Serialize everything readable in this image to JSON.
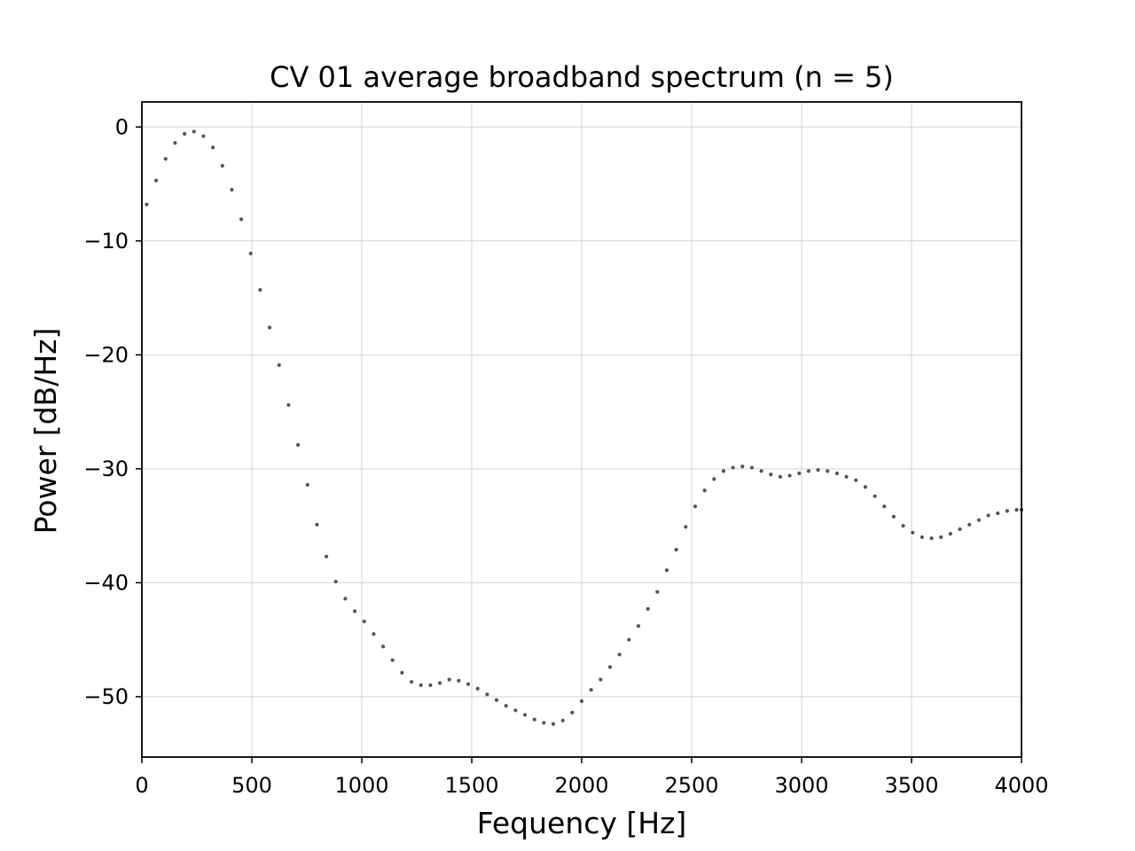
{
  "chart_data": {
    "type": "scatter",
    "title": "CV 01 average broadband spectrum (n = 5)",
    "xlabel": "Fequency [Hz]",
    "ylabel": "Power [dB/Hz]",
    "xlim": [
      0,
      4000
    ],
    "ylim": [
      -55.3,
      2.2
    ],
    "xticks": [
      0,
      500,
      1000,
      1500,
      2000,
      2500,
      3000,
      3500,
      4000
    ],
    "xtick_labels": [
      "0",
      "500",
      "1000",
      "1500",
      "2000",
      "2500",
      "3000",
      "3500",
      "4000"
    ],
    "yticks": [
      0,
      -10,
      -20,
      -30,
      -40,
      -50
    ],
    "ytick_labels": [
      "0",
      "−10",
      "−20",
      "−30",
      "−40",
      "−50"
    ],
    "grid": true,
    "marker_color": "#555555",
    "series": [
      {
        "x": [
          22,
          65,
          108,
          151,
          194,
          237,
          280,
          323,
          366,
          409,
          452,
          495,
          538,
          581,
          624,
          667,
          710,
          753,
          796,
          839,
          882,
          925,
          968,
          1011,
          1054,
          1097,
          1140,
          1183,
          1226,
          1269,
          1312,
          1355,
          1398,
          1441,
          1484,
          1527,
          1570,
          1613,
          1656,
          1699,
          1742,
          1785,
          1828,
          1871,
          1914,
          1957,
          2000,
          2043,
          2086,
          2129,
          2172,
          2215,
          2258,
          2301,
          2344,
          2387,
          2430,
          2473,
          2516,
          2559,
          2602,
          2645,
          2688,
          2731,
          2774,
          2817,
          2860,
          2903,
          2946,
          2989,
          3032,
          3075,
          3118,
          3161,
          3204,
          3247,
          3290,
          3333,
          3376,
          3419,
          3462,
          3505,
          3548,
          3591,
          3634,
          3677,
          3720,
          3763,
          3806,
          3849,
          3892,
          3935,
          3978,
          4000
        ],
        "y": [
          -6.8,
          -4.7,
          -2.8,
          -1.4,
          -0.6,
          -0.4,
          -0.8,
          -1.8,
          -3.4,
          -5.5,
          -8.1,
          -11.1,
          -14.3,
          -17.6,
          -20.9,
          -24.4,
          -27.9,
          -31.4,
          -34.9,
          -37.7,
          -39.9,
          -41.4,
          -42.5,
          -43.4,
          -44.5,
          -45.6,
          -46.8,
          -47.9,
          -48.7,
          -49.0,
          -49.0,
          -48.8,
          -48.5,
          -48.6,
          -48.9,
          -49.3,
          -49.8,
          -50.3,
          -50.8,
          -51.2,
          -51.6,
          -52.0,
          -52.3,
          -52.4,
          -52.1,
          -51.4,
          -50.4,
          -49.4,
          -48.5,
          -47.4,
          -46.3,
          -45.0,
          -43.8,
          -42.3,
          -40.8,
          -38.9,
          -37.1,
          -35.1,
          -33.3,
          -31.9,
          -30.9,
          -30.2,
          -29.9,
          -29.8,
          -29.9,
          -30.2,
          -30.5,
          -30.7,
          -30.6,
          -30.4,
          -30.2,
          -30.1,
          -30.2,
          -30.4,
          -30.7,
          -31.0,
          -31.6,
          -32.4,
          -33.3,
          -34.2,
          -35.0,
          -35.6,
          -36.0,
          -36.1,
          -36.0,
          -35.7,
          -35.3,
          -34.9,
          -34.5,
          -34.1,
          -33.9,
          -33.7,
          -33.6,
          -33.6
        ]
      }
    ]
  }
}
